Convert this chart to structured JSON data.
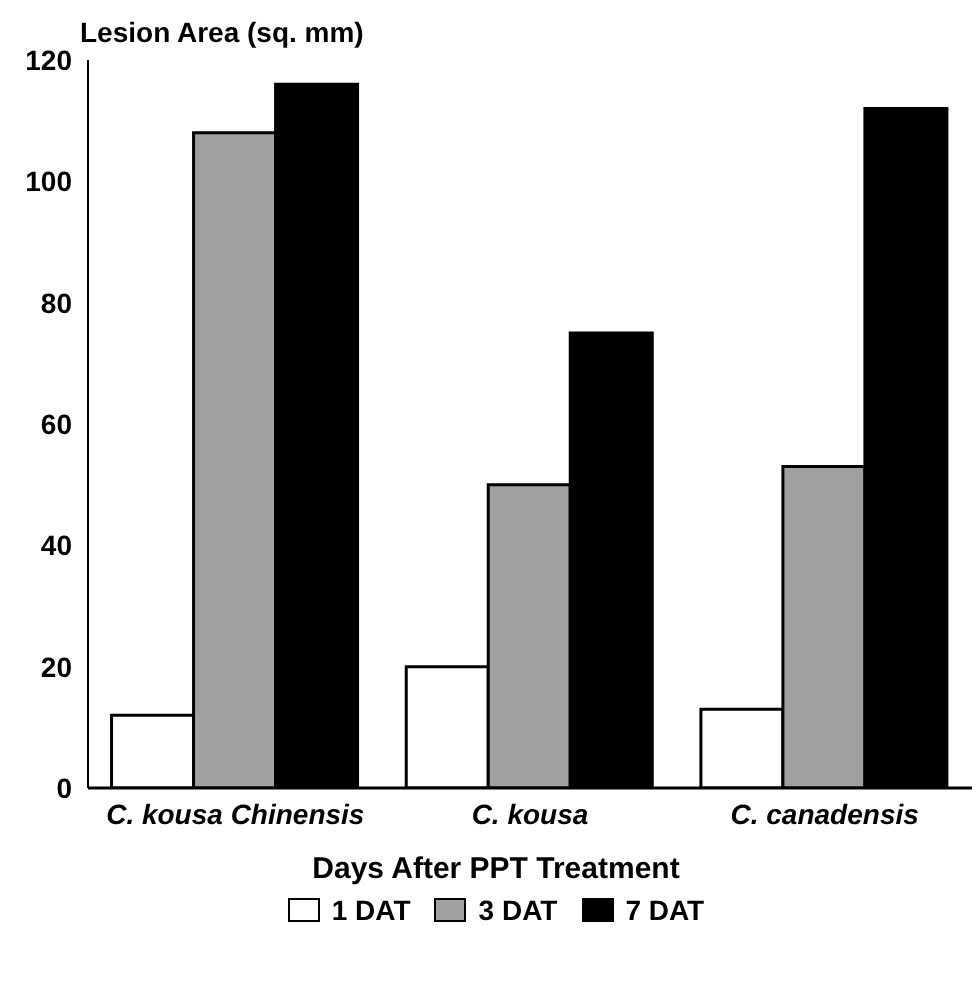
{
  "chart_data": {
    "type": "bar",
    "ylabel": "Lesion Area (sq. mm)",
    "legend_title": "Days After PPT Treatment",
    "categories": [
      "C. kousa Chinensis",
      "C. kousa",
      "C. canadensis"
    ],
    "series": [
      {
        "name": "1 DAT",
        "color": "#ffffff",
        "values": [
          12,
          20,
          13
        ]
      },
      {
        "name": "3 DAT",
        "color": "#a0a0a0",
        "values": [
          108,
          50,
          53
        ]
      },
      {
        "name": "7 DAT",
        "color": "#000000",
        "values": [
          116,
          75,
          112
        ]
      }
    ],
    "ylim": [
      0,
      120
    ],
    "yticks": [
      0,
      20,
      40,
      60,
      80,
      100,
      120
    ],
    "grid": false,
    "legend": "bottom"
  }
}
